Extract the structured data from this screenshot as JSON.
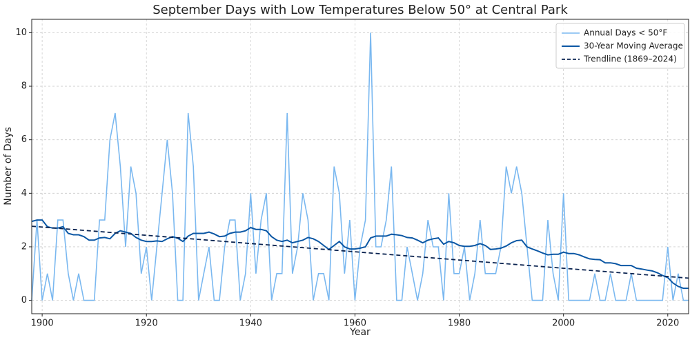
{
  "chart_data": {
    "type": "line",
    "title": "September Days with Low Temperatures Below 50° at Central Park",
    "xlabel": "Year",
    "ylabel": "Number of Days",
    "x": [
      1898,
      1899,
      1900,
      1901,
      1902,
      1903,
      1904,
      1905,
      1906,
      1907,
      1908,
      1909,
      1910,
      1911,
      1912,
      1913,
      1914,
      1915,
      1916,
      1917,
      1918,
      1919,
      1920,
      1921,
      1922,
      1923,
      1924,
      1925,
      1926,
      1927,
      1928,
      1929,
      1930,
      1931,
      1932,
      1933,
      1934,
      1935,
      1936,
      1937,
      1938,
      1939,
      1940,
      1941,
      1942,
      1943,
      1944,
      1945,
      1946,
      1947,
      1948,
      1949,
      1950,
      1951,
      1952,
      1953,
      1954,
      1955,
      1956,
      1957,
      1958,
      1959,
      1960,
      1961,
      1962,
      1963,
      1964,
      1965,
      1966,
      1967,
      1968,
      1969,
      1970,
      1971,
      1972,
      1973,
      1974,
      1975,
      1976,
      1977,
      1978,
      1979,
      1980,
      1981,
      1982,
      1983,
      1984,
      1985,
      1986,
      1987,
      1988,
      1989,
      1990,
      1991,
      1992,
      1993,
      1994,
      1995,
      1996,
      1997,
      1998,
      1999,
      2000,
      2001,
      2002,
      2003,
      2004,
      2005,
      2006,
      2007,
      2008,
      2009,
      2010,
      2011,
      2012,
      2013,
      2014,
      2015,
      2016,
      2017,
      2018,
      2019,
      2020,
      2021,
      2022,
      2023,
      2024
    ],
    "series": [
      {
        "name": "Annual Days < 50°F",
        "color": "#7ab8f0",
        "width": 1.6,
        "dash": false,
        "values": [
          0,
          3,
          0,
          1,
          0,
          3,
          3,
          1,
          0,
          1,
          0,
          0,
          0,
          3,
          3,
          6,
          7,
          5,
          2,
          5,
          4,
          1,
          2,
          0,
          2,
          4,
          6,
          4,
          0,
          0,
          7,
          5,
          0,
          1,
          2,
          0,
          0,
          2,
          3,
          3,
          0,
          1,
          4,
          1,
          3,
          4,
          0,
          1,
          1,
          7,
          1,
          2,
          4,
          3,
          0,
          1,
          1,
          0,
          5,
          4,
          1,
          3,
          0,
          2,
          3,
          10,
          2,
          2,
          3,
          5,
          0,
          0,
          2,
          1,
          0,
          1,
          3,
          2,
          2,
          0,
          4,
          1,
          1,
          2,
          0,
          1,
          3,
          1,
          1,
          1,
          2,
          5,
          4,
          5,
          4,
          2,
          0,
          0,
          0,
          3,
          1,
          0,
          4,
          0,
          0,
          0,
          0,
          0,
          1,
          0,
          0,
          1,
          0,
          0,
          0,
          1,
          0,
          0,
          0,
          0,
          0,
          0,
          2,
          0,
          1,
          0,
          0
        ]
      },
      {
        "name": "30-Year Moving Average",
        "color": "#0b57a4",
        "width": 2,
        "dash": false,
        "values": [
          2.95,
          3.0,
          3.0,
          2.75,
          2.7,
          2.7,
          2.75,
          2.5,
          2.45,
          2.45,
          2.38,
          2.25,
          2.25,
          2.33,
          2.35,
          2.3,
          2.5,
          2.6,
          2.55,
          2.5,
          2.35,
          2.25,
          2.2,
          2.2,
          2.22,
          2.2,
          2.3,
          2.38,
          2.32,
          2.2,
          2.4,
          2.5,
          2.5,
          2.5,
          2.55,
          2.48,
          2.38,
          2.4,
          2.5,
          2.55,
          2.55,
          2.6,
          2.72,
          2.65,
          2.65,
          2.6,
          2.38,
          2.25,
          2.2,
          2.25,
          2.15,
          2.2,
          2.25,
          2.35,
          2.3,
          2.2,
          2.05,
          1.9,
          2.05,
          2.2,
          2.0,
          1.92,
          1.92,
          1.95,
          2.0,
          2.33,
          2.4,
          2.4,
          2.4,
          2.47,
          2.45,
          2.42,
          2.35,
          2.33,
          2.25,
          2.15,
          2.25,
          2.3,
          2.33,
          2.1,
          2.2,
          2.15,
          2.05,
          2.02,
          2.02,
          2.05,
          2.12,
          2.05,
          1.9,
          1.92,
          1.95,
          2.03,
          2.15,
          2.23,
          2.25,
          2.0,
          1.92,
          1.85,
          1.77,
          1.7,
          1.72,
          1.72,
          1.8,
          1.75,
          1.75,
          1.7,
          1.62,
          1.55,
          1.53,
          1.52,
          1.4,
          1.4,
          1.37,
          1.3,
          1.3,
          1.3,
          1.2,
          1.17,
          1.13,
          1.1,
          1.03,
          0.93,
          0.85,
          0.65,
          0.52,
          0.45,
          0.45
        ]
      },
      {
        "name": "Trendline (1869–2024)",
        "color": "#0a2350",
        "width": 1.8,
        "dash": true,
        "x": [
          1898,
          2024
        ],
        "values": [
          2.77,
          0.83
        ]
      }
    ],
    "xlim": [
      1898,
      2024
    ],
    "xticks": [
      1900,
      1920,
      1940,
      1960,
      1980,
      2000,
      2020
    ],
    "ylim": [
      -0.5,
      10.5
    ],
    "yticks": [
      0,
      2,
      4,
      6,
      8,
      10
    ],
    "grid": true,
    "legend": "upper right"
  }
}
